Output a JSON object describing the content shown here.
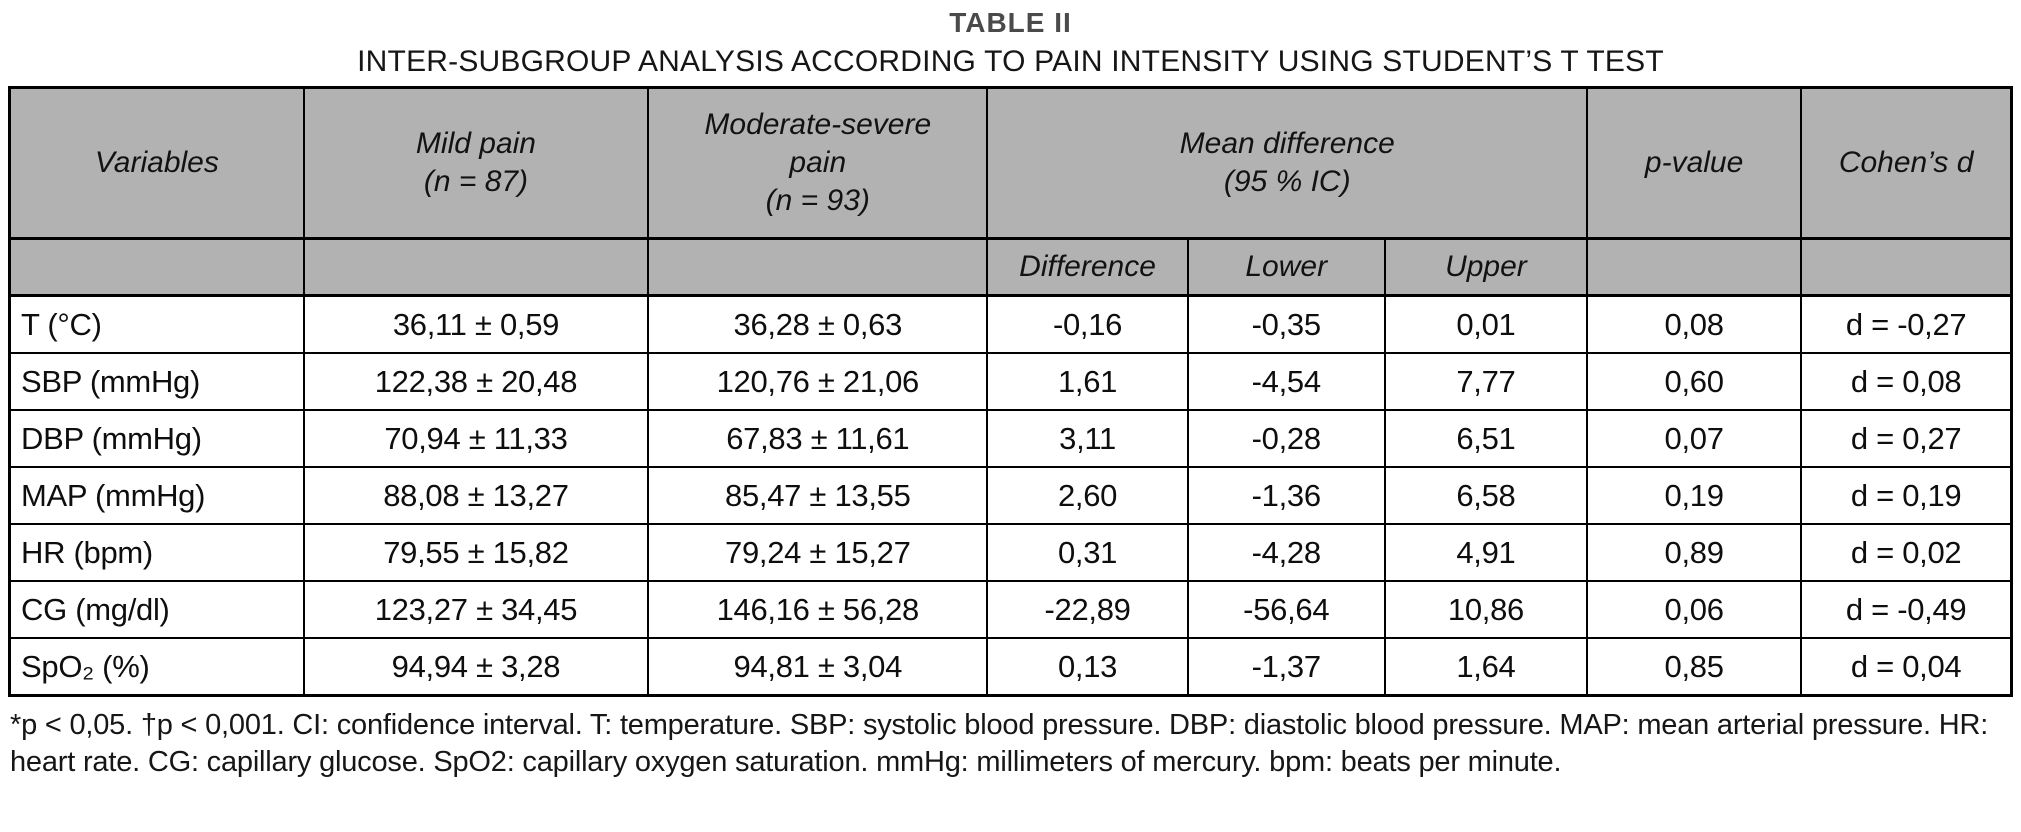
{
  "title": "TABLE II",
  "subtitle": "INTER-SUBGROUP ANALYSIS ACCORDING TO PAIN INTENSITY USING STUDENT’S T TEST",
  "colors": {
    "header_background": "#b2b2b2",
    "border": "#000000",
    "title_text": "#4a4a4a",
    "body_text": "#111111"
  },
  "table": {
    "header": {
      "variables": "Variables",
      "mild_pain": "Mild pain\n(n = 87)",
      "moderate_severe": "Moderate-severe\npain\n(n = 93)",
      "mean_difference": "Mean difference\n(95 % IC)",
      "p_value": "p-value",
      "cohens_d": "Cohen’s d",
      "sub_difference": "Difference",
      "sub_lower": "Lower",
      "sub_upper": "Upper"
    },
    "rows": [
      [
        "T (°C)",
        "36,11 ± 0,59",
        "36,28 ± 0,63",
        "-0,16",
        "-0,35",
        "0,01",
        "0,08",
        "d = -0,27"
      ],
      [
        "SBP (mmHg)",
        "122,38 ± 20,48",
        "120,76 ± 21,06",
        "1,61",
        "-4,54",
        "7,77",
        "0,60",
        "d = 0,08"
      ],
      [
        "DBP (mmHg)",
        "70,94 ± 11,33",
        "67,83 ± 11,61",
        "3,11",
        "-0,28",
        "6,51",
        "0,07",
        "d = 0,27"
      ],
      [
        "MAP (mmHg)",
        "88,08 ± 13,27",
        "85,47 ± 13,55",
        "2,60",
        "-1,36",
        "6,58",
        "0,19",
        "d = 0,19"
      ],
      [
        "HR (bpm)",
        "79,55 ± 15,82",
        "79,24 ± 15,27",
        "0,31",
        "-4,28",
        "4,91",
        "0,89",
        "d = 0,02"
      ],
      [
        "CG (mg/dl)",
        "123,27 ± 34,45",
        "146,16 ± 56,28",
        "-22,89",
        "-56,64",
        "10,86",
        "0,06",
        "d = -0,49"
      ],
      [
        "SpO₂ (%)",
        "94,94 ± 3,28",
        "94,81 ± 3,04",
        "0,13",
        "-1,37",
        "1,64",
        "0,85",
        "d = 0,04"
      ]
    ]
  },
  "footnote": "*p < 0,05. †p < 0,001. CI: confidence interval. T: temperature. SBP: systolic blood pressure. DBP: diastolic blood pressure. MAP: mean arterial pressure. HR: heart rate. CG: capillary glucose. SpO2: capillary oxygen saturation. mmHg: millimeters of mercury. bpm: beats per minute.",
  "chart_data": {
    "type": "table",
    "title": "TABLE II — INTER-SUBGROUP ANALYSIS ACCORDING TO PAIN INTENSITY USING STUDENT’S T TEST",
    "columns": [
      "Variables",
      "Mild pain (n = 87)",
      "Moderate-severe pain (n = 93)",
      "Mean difference",
      "Lower (95 % IC)",
      "Upper (95 % IC)",
      "p-value",
      "Cohen's d"
    ],
    "rows": [
      [
        "T (°C)",
        "36,11 ± 0,59",
        "36,28 ± 0,63",
        "-0,16",
        "-0,35",
        "0,01",
        "0,08",
        "d = -0,27"
      ],
      [
        "SBP (mmHg)",
        "122,38 ± 20,48",
        "120,76 ± 21,06",
        "1,61",
        "-4,54",
        "7,77",
        "0,60",
        "d = 0,08"
      ],
      [
        "DBP (mmHg)",
        "70,94 ± 11,33",
        "67,83 ± 11,61",
        "3,11",
        "-0,28",
        "6,51",
        "0,07",
        "d = 0,27"
      ],
      [
        "MAP (mmHg)",
        "88,08 ± 13,27",
        "85,47 ± 13,55",
        "2,60",
        "-1,36",
        "6,58",
        "0,19",
        "d = 0,19"
      ],
      [
        "HR (bpm)",
        "79,55 ± 15,82",
        "79,24 ± 15,27",
        "0,31",
        "-4,28",
        "4,91",
        "0,89",
        "d = 0,02"
      ],
      [
        "CG (mg/dl)",
        "123,27 ± 34,45",
        "146,16 ± 56,28",
        "-22,89",
        "-56,64",
        "10,86",
        "0,06",
        "d = -0,49"
      ],
      [
        "SpO₂ (%)",
        "94,94 ± 3,28",
        "94,81 ± 3,04",
        "0,13",
        "-1,37",
        "1,64",
        "0,85",
        "d = 0,04"
      ]
    ]
  }
}
